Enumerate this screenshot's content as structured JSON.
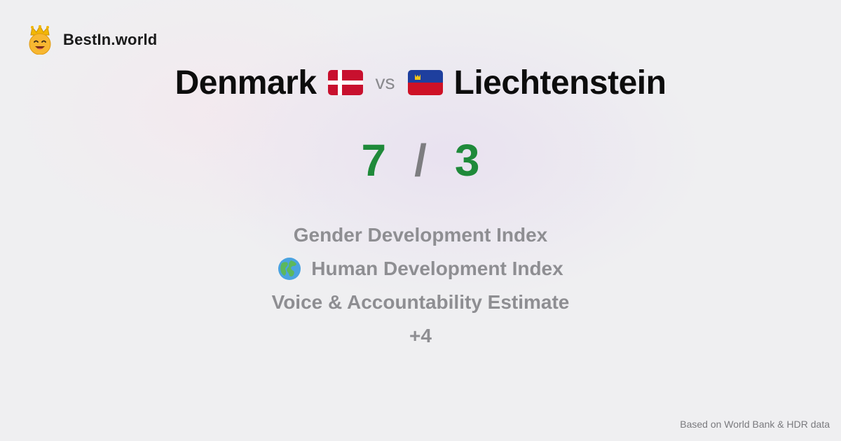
{
  "brand": {
    "name": "BestIn.world",
    "logo_icon": "crown-smiley-icon"
  },
  "comparison": {
    "left_country": "Denmark",
    "left_flag_icon": "denmark-flag-icon",
    "vs_label": "vs",
    "right_country": "Liechtenstein",
    "right_flag_icon": "liechtenstein-flag-icon"
  },
  "score": {
    "left": "7",
    "separator": "/",
    "right": "3",
    "color": "#1f8a3a"
  },
  "metrics": [
    {
      "label": "Gender Development Index",
      "icon": null
    },
    {
      "label": "Human Development Index",
      "icon": "globe-icon"
    },
    {
      "label": "Voice & Accountability Estimate",
      "icon": null
    },
    {
      "label": "+4",
      "icon": null
    }
  ],
  "footer": {
    "source": "Based on World Bank & HDR data"
  }
}
